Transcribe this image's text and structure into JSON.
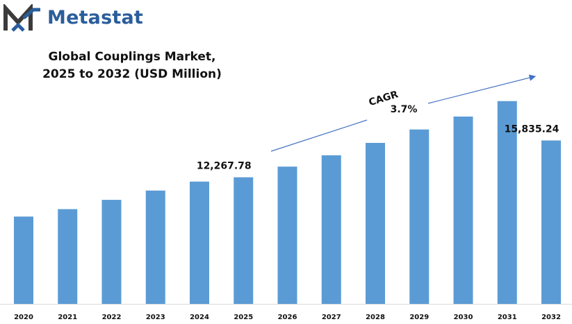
{
  "brand": {
    "name": "Metastat",
    "logo_icon": "metastat-m-logo-icon",
    "color": "#2a5d9b"
  },
  "chart_data": {
    "type": "bar",
    "title_line1": "Global Couplings Market,",
    "title_line2": "2025 to 2032 (USD Million)",
    "categories": [
      "2020",
      "2021",
      "2022",
      "2023",
      "2024",
      "2025",
      "2026",
      "2027",
      "2028",
      "2029",
      "2030",
      "2031",
      "2032"
    ],
    "values": [
      8460,
      9180,
      10080,
      10980,
      11850,
      12267.78,
      13300,
      14400,
      15600,
      16900,
      18150,
      19650,
      15835.24
    ],
    "bar_color": "#5b9bd5",
    "data_labels": [
      {
        "category": "2025",
        "text": "12,267.78"
      },
      {
        "category": "2032",
        "text": "15,835.24"
      }
    ],
    "annotation": {
      "label": "CAGR",
      "value": "3.7%",
      "arrow_color": "#4472c4"
    },
    "grid": false,
    "legend": "none",
    "xlabel": "",
    "ylabel": ""
  }
}
